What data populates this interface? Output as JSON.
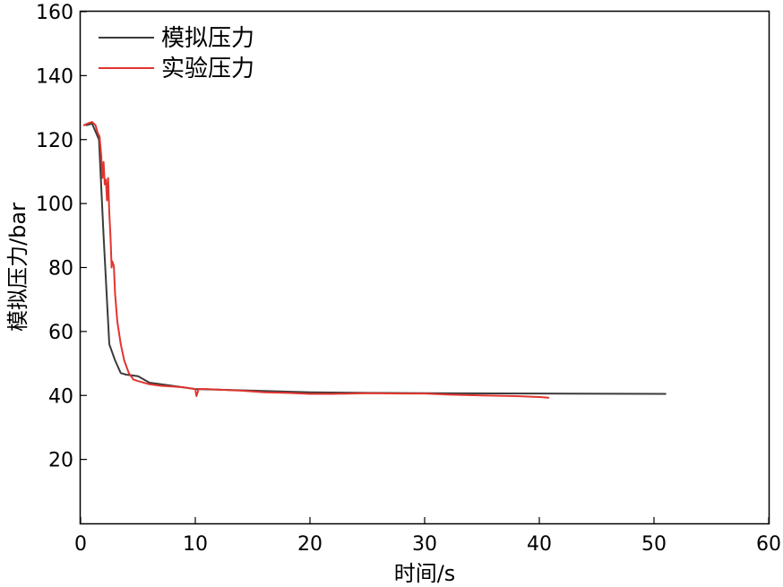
{
  "chart_data": {
    "type": "line",
    "xlabel": "时间/s",
    "ylabel": "模拟压力/bar",
    "xlim": [
      0,
      60
    ],
    "ylim": [
      0,
      160
    ],
    "xticks": [
      0,
      10,
      20,
      30,
      40,
      50,
      60
    ],
    "yticks": [
      20,
      40,
      60,
      80,
      100,
      120,
      140,
      160
    ],
    "grid": false,
    "legend_position": "top-left",
    "series": [
      {
        "name": "模拟压力",
        "color": "#3b3b3b",
        "x": [
          0.5,
          1.0,
          1.6,
          2.0,
          2.5,
          3.0,
          3.5,
          4.0,
          5.0,
          6.0,
          8.0,
          10.0,
          15.0,
          20.0,
          25.0,
          30.0,
          40.0,
          51.0
        ],
        "y": [
          124.5,
          125.0,
          120.0,
          90.0,
          56.0,
          51.0,
          47.0,
          46.5,
          46.0,
          44.0,
          43.0,
          42.0,
          41.5,
          41.0,
          40.8,
          40.7,
          40.6,
          40.5
        ]
      },
      {
        "name": "实验压力",
        "color": "#e0352f",
        "x": [
          0.3,
          0.6,
          1.0,
          1.3,
          1.5,
          1.65,
          1.8,
          1.9,
          2.0,
          2.1,
          2.2,
          2.3,
          2.4,
          2.5,
          2.6,
          2.7,
          2.75,
          2.8,
          2.9,
          3.0,
          3.2,
          3.5,
          3.8,
          4.2,
          4.6,
          5.0,
          6.0,
          7.0,
          8.0,
          9.0,
          10.0,
          10.1,
          10.3,
          11.0,
          12.0,
          14.0,
          16.0,
          18.0,
          20.0,
          22.0,
          25.0,
          28.0,
          30.0,
          32.0,
          35.0,
          38.0,
          40.0,
          40.8
        ],
        "y": [
          124.5,
          125.0,
          125.5,
          124.5,
          122.0,
          121.0,
          115.0,
          108.0,
          113.0,
          106.0,
          107.5,
          101.0,
          108.0,
          97.0,
          90.0,
          80.0,
          82.0,
          81.5,
          80.5,
          72.0,
          63.0,
          56.0,
          51.0,
          47.0,
          45.0,
          44.5,
          43.5,
          43.0,
          42.8,
          42.5,
          42.0,
          39.8,
          42.0,
          42.0,
          41.8,
          41.5,
          41.0,
          40.8,
          40.5,
          40.5,
          40.7,
          40.6,
          40.6,
          40.3,
          40.0,
          39.8,
          39.5,
          39.3
        ]
      }
    ]
  }
}
